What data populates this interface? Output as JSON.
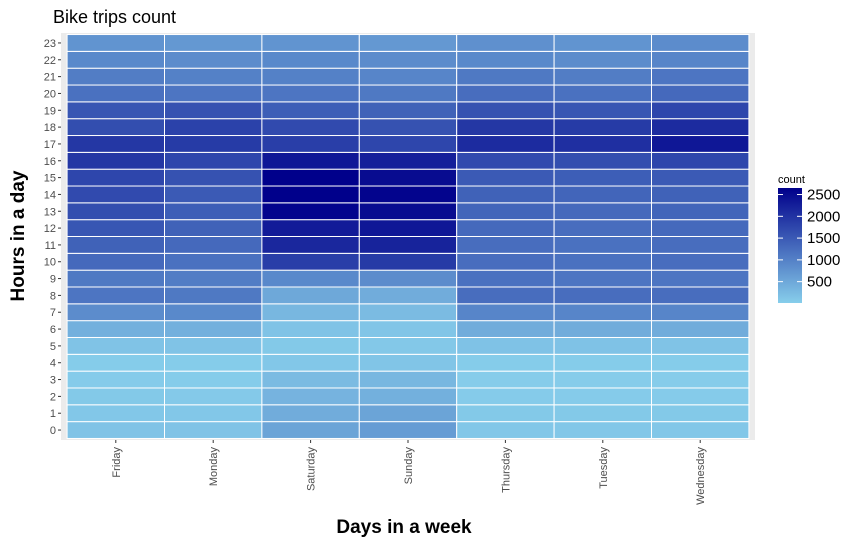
{
  "chart_data": {
    "type": "heatmap",
    "title": "Bike trips count",
    "xlabel": "Days in a week",
    "ylabel": "Hours in a day",
    "x_categories": [
      "Friday",
      "Monday",
      "Saturday",
      "Sunday",
      "Thursday",
      "Tuesday",
      "Wednesday"
    ],
    "y_categories": [
      "0",
      "1",
      "2",
      "3",
      "4",
      "5",
      "6",
      "7",
      "8",
      "9",
      "10",
      "11",
      "12",
      "13",
      "14",
      "15",
      "16",
      "17",
      "18",
      "19",
      "20",
      "21",
      "22",
      "23"
    ],
    "values": [
      [
        150,
        150,
        550,
        650,
        100,
        100,
        100
      ],
      [
        100,
        100,
        450,
        550,
        80,
        80,
        80
      ],
      [
        80,
        70,
        350,
        400,
        50,
        50,
        50
      ],
      [
        50,
        40,
        250,
        300,
        30,
        30,
        30
      ],
      [
        40,
        40,
        100,
        120,
        40,
        40,
        40
      ],
      [
        150,
        150,
        80,
        90,
        160,
        160,
        150
      ],
      [
        400,
        400,
        150,
        120,
        450,
        450,
        450
      ],
      [
        850,
        900,
        300,
        250,
        950,
        950,
        950
      ],
      [
        1150,
        1100,
        500,
        450,
        1250,
        1250,
        1250
      ],
      [
        1100,
        1050,
        900,
        850,
        1200,
        1150,
        1150
      ],
      [
        1300,
        1200,
        1850,
        1900,
        1250,
        1200,
        1250
      ],
      [
        1400,
        1300,
        2150,
        2200,
        1250,
        1200,
        1250
      ],
      [
        1550,
        1400,
        2300,
        2350,
        1300,
        1250,
        1300
      ],
      [
        1650,
        1450,
        2600,
        2500,
        1350,
        1300,
        1350
      ],
      [
        1700,
        1500,
        2650,
        2600,
        1400,
        1350,
        1400
      ],
      [
        1750,
        1600,
        2650,
        2500,
        1500,
        1450,
        1500
      ],
      [
        1950,
        1750,
        2350,
        2250,
        1700,
        1650,
        1750
      ],
      [
        1950,
        1900,
        1850,
        1750,
        2100,
        2050,
        2350
      ],
      [
        1650,
        1800,
        1700,
        1600,
        1950,
        1900,
        2100
      ],
      [
        1550,
        1600,
        1450,
        1400,
        1600,
        1550,
        1750
      ],
      [
        1200,
        1150,
        1150,
        1100,
        1250,
        1200,
        1300
      ],
      [
        1050,
        1000,
        1000,
        950,
        1100,
        1050,
        1150
      ],
      [
        900,
        850,
        900,
        850,
        900,
        850,
        950
      ],
      [
        750,
        700,
        750,
        700,
        800,
        750,
        850
      ]
    ],
    "legend": {
      "title": "count",
      "ticks": [
        2500,
        2000,
        1500,
        1000,
        500
      ],
      "range": [
        10,
        2650
      ],
      "placement": "right"
    },
    "color_low": "#87ceeb",
    "color_high": "#00008b",
    "panel_background": "#ebebeb",
    "cell_border": "#ffffff"
  }
}
